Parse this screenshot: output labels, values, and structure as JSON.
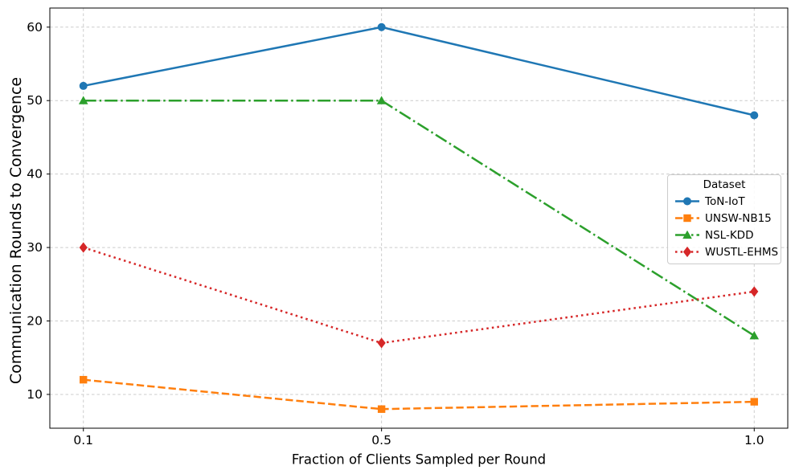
{
  "chart_data": {
    "type": "line",
    "xlabel": "Fraction of Clients Sampled per Round",
    "ylabel": "Communication Rounds to Convergence",
    "legend_title": "Dataset",
    "legend_position": "center-right",
    "grid": true,
    "grid_color": "#cccccc",
    "axis_color": "#000000",
    "background": "#ffffff",
    "x": [
      0.1,
      0.5,
      1.0
    ],
    "xticks": [
      0.1,
      0.5,
      1.0
    ],
    "xtick_labels": [
      "0.1",
      "0.5",
      "1.0"
    ],
    "yticks": [
      10,
      20,
      30,
      40,
      50,
      60
    ],
    "ytick_labels": [
      "10",
      "20",
      "30",
      "40",
      "50",
      "60"
    ],
    "xlim": [
      0.055,
      1.045
    ],
    "ylim": [
      5.4,
      62.6
    ],
    "series": [
      {
        "name": "ToN-IoT",
        "values": [
          52,
          60,
          48
        ],
        "color": "#1f77b4",
        "linestyle": "solid",
        "marker": "circle"
      },
      {
        "name": "UNSW-NB15",
        "values": [
          12,
          8,
          9
        ],
        "color": "#ff7f0e",
        "linestyle": "dashed",
        "marker": "square"
      },
      {
        "name": "NSL-KDD",
        "values": [
          50,
          50,
          18
        ],
        "color": "#2ca02c",
        "linestyle": "dashdot",
        "marker": "triangle"
      },
      {
        "name": "WUSTL-EHMS",
        "values": [
          30,
          17,
          24
        ],
        "color": "#d62728",
        "linestyle": "dotted",
        "marker": "diamond"
      }
    ]
  }
}
